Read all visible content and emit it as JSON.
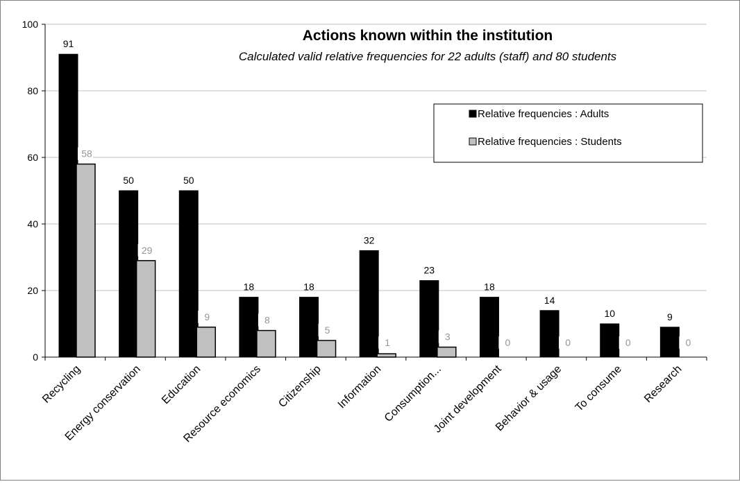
{
  "chart_data": {
    "type": "bar",
    "title": "Actions known within the institution",
    "subtitle": "Calculated valid relative frequencies for 22 adults (staff) and 80 students",
    "categories": [
      "Recycling",
      "Energy conservation",
      "Education",
      "Resource economics",
      "Citizenship",
      "Information",
      "Consumption...",
      "Joint development",
      "Behavior & usage",
      "To consume",
      "Research"
    ],
    "series": [
      {
        "name": "Relative frequencies : Adults",
        "values": [
          91,
          50,
          50,
          18,
          18,
          32,
          23,
          18,
          14,
          10,
          9
        ],
        "color": "#000000",
        "label_color": "#000000"
      },
      {
        "name": "Relative frequencies : Students",
        "values": [
          58,
          29,
          9,
          8,
          5,
          1,
          3,
          0,
          0,
          0,
          0
        ],
        "color": "#c0c0c0",
        "label_color": "#969696"
      }
    ],
    "ylim": [
      0,
      100
    ],
    "yticks": [
      0,
      20,
      40,
      60,
      80,
      100
    ],
    "grid": true,
    "legend_position": "right"
  }
}
